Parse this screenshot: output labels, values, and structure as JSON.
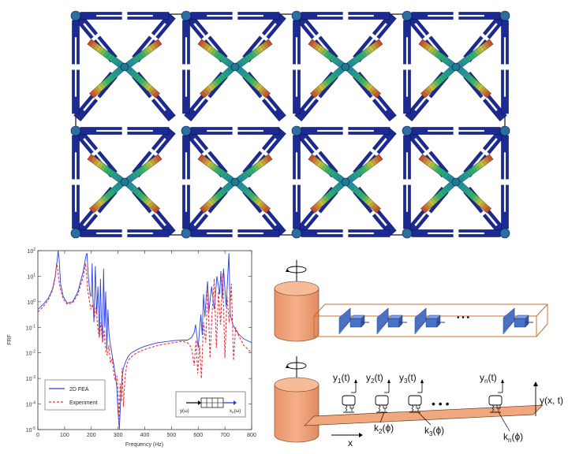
{
  "chart_data": {
    "type": "line",
    "title": "",
    "xlabel": "Frequency (Hz)",
    "ylabel": "FRF",
    "xlim": [
      0,
      800
    ],
    "ylim_exp": [
      -5,
      2
    ],
    "xticks": [
      "0",
      "100",
      "200",
      "300",
      "400",
      "500",
      "600",
      "700",
      "800"
    ],
    "yticks": [
      {
        "base": "10",
        "exp": "2"
      },
      {
        "base": "10",
        "exp": "1"
      },
      {
        "base": "10",
        "exp": "0"
      },
      {
        "base": "10",
        "exp": "-1"
      },
      {
        "base": "10",
        "exp": "-2"
      },
      {
        "base": "10",
        "exp": "-3"
      },
      {
        "base": "10",
        "exp": "-4"
      },
      {
        "base": "10",
        "exp": "-5"
      }
    ],
    "grid": false,
    "legend_position": "bottom-left",
    "series": [
      {
        "name": "2D FEA",
        "color": "#2b3fe0",
        "dash": "solid",
        "x": [
          0,
          20,
          40,
          55,
          65,
          72,
          76,
          80,
          85,
          95,
          110,
          130,
          150,
          170,
          180,
          184,
          188,
          195,
          200,
          203,
          206,
          210,
          215,
          220,
          225,
          230,
          234,
          238,
          242,
          246,
          250,
          254,
          258,
          262,
          266,
          270,
          275,
          280,
          285,
          290,
          295,
          300,
          305,
          310,
          315,
          320,
          330,
          340,
          350,
          370,
          390,
          420,
          450,
          480,
          510,
          540,
          560,
          575,
          585,
          590,
          600,
          605,
          610,
          615,
          620,
          625,
          630,
          635,
          640,
          650,
          660,
          670,
          680,
          685,
          690,
          695,
          700,
          705,
          710,
          715,
          720,
          730,
          740,
          750,
          760,
          770,
          780,
          790,
          800
        ],
        "y": [
          -0.3,
          -0.1,
          0.15,
          0.5,
          1.0,
          1.6,
          2.0,
          1.6,
          0.7,
          0.2,
          -0.05,
          0,
          0.4,
          1.2,
          1.8,
          1.9,
          1.1,
          0.3,
          0.2,
          1.5,
          0.1,
          -0.8,
          1.4,
          -0.5,
          0.6,
          -1.4,
          0.9,
          -0.7,
          -1.5,
          1.3,
          -1.0,
          0.4,
          -1.9,
          -0.3,
          -1.2,
          -1.6,
          -1.9,
          -2.2,
          -2.5,
          -2.85,
          -3.3,
          -4.3,
          -5.0,
          -3.8,
          -3.0,
          -2.6,
          -2.3,
          -2.1,
          -2.0,
          -1.88,
          -1.78,
          -1.68,
          -1.6,
          -1.56,
          -1.52,
          -1.5,
          -1.5,
          -1.4,
          -1.2,
          -0.9,
          -1.8,
          -1.1,
          -0.5,
          -1.3,
          0.3,
          -0.6,
          0.2,
          0.8,
          -0.4,
          0.6,
          -0.3,
          1.0,
          0.3,
          1.2,
          0.1,
          1.3,
          0.5,
          -0.2,
          0.9,
          1.9,
          -0.5,
          -0.9,
          -1.1,
          -1.25,
          -1.35,
          -1.45,
          -1.5,
          -1.55,
          -1.6
        ]
      },
      {
        "name": "Experiment",
        "color": "#e8323c",
        "dash": "dashed",
        "x": [
          0,
          20,
          40,
          55,
          65,
          70,
          74,
          78,
          84,
          95,
          110,
          130,
          150,
          170,
          178,
          182,
          186,
          192,
          198,
          205,
          212,
          218,
          224,
          230,
          236,
          242,
          248,
          254,
          260,
          266,
          272,
          278,
          284,
          290,
          296,
          300,
          304,
          308,
          312,
          316,
          320,
          326,
          332,
          338,
          346,
          356,
          370,
          390,
          420,
          450,
          480,
          510,
          540,
          560,
          575,
          585,
          592,
          598,
          605,
          612,
          620,
          628,
          636,
          644,
          652,
          660,
          668,
          676,
          684,
          692,
          700,
          708,
          716,
          724,
          732,
          740,
          750,
          760,
          770,
          780,
          790,
          800
        ],
        "y": [
          -0.4,
          -0.2,
          0.1,
          0.45,
          0.95,
          1.5,
          1.3,
          0.9,
          0.5,
          0.1,
          -0.1,
          -0.05,
          0.3,
          1.0,
          1.5,
          1.1,
          0.5,
          0.1,
          -0.3,
          -0.1,
          -0.6,
          -0.2,
          -1.0,
          -1.4,
          -0.8,
          -1.6,
          -1.1,
          -1.9,
          -2.1,
          -1.7,
          -2.4,
          -2.2,
          -2.8,
          -3.1,
          -2.9,
          -3.5,
          -4.6,
          -3.2,
          -3.9,
          -2.6,
          -4.1,
          -3.0,
          -2.5,
          -2.3,
          -2.2,
          -2.1,
          -2.0,
          -1.9,
          -1.8,
          -1.7,
          -1.65,
          -1.6,
          -1.55,
          -1.6,
          -1.8,
          -2.5,
          -1.5,
          -2.8,
          -1.7,
          -3.0,
          -0.8,
          -1.6,
          0.6,
          -2.2,
          -0.4,
          0.9,
          -1.8,
          0.4,
          -0.9,
          1.1,
          -2.2,
          0.2,
          -0.8,
          0.7,
          -2.3,
          -1.0,
          -1.3,
          -1.5,
          -1.7,
          -1.8,
          -1.9,
          -2.0
        ]
      }
    ]
  },
  "inset_labels": {
    "input": "y(ω)",
    "output": "x",
    "output_sub": "n",
    "output_rest": "(ω)"
  },
  "model": {
    "y_labels": [
      {
        "base": "y",
        "sub": "1",
        "rest": "(t)"
      },
      {
        "base": "y",
        "sub": "2",
        "rest": "(t)"
      },
      {
        "base": "y",
        "sub": "3",
        "rest": "(t)"
      },
      {
        "base": "y",
        "sub": "n",
        "rest": "(t)"
      }
    ],
    "k_labels": [
      {
        "base": "k",
        "sub": "2",
        "rest": "(ϕ)"
      },
      {
        "base": "k",
        "sub": "3",
        "rest": "(ϕ)"
      },
      {
        "base": "k",
        "sub": "n",
        "rest": "(ϕ)"
      }
    ],
    "field_label": "y(x, t)",
    "x_label": "x",
    "ellipsis_top": "•   •   •",
    "ellipsis_bottom": "•   •   •",
    "colors": {
      "drum": "#f2a87e",
      "drum_edge": "#6b3b22",
      "wing": "#4a72c4",
      "box_edge": "#c8702c"
    }
  },
  "lattice": {
    "colors": {
      "blue": "#1c2a94",
      "white": "#ffffff",
      "grid": "#111111"
    }
  }
}
